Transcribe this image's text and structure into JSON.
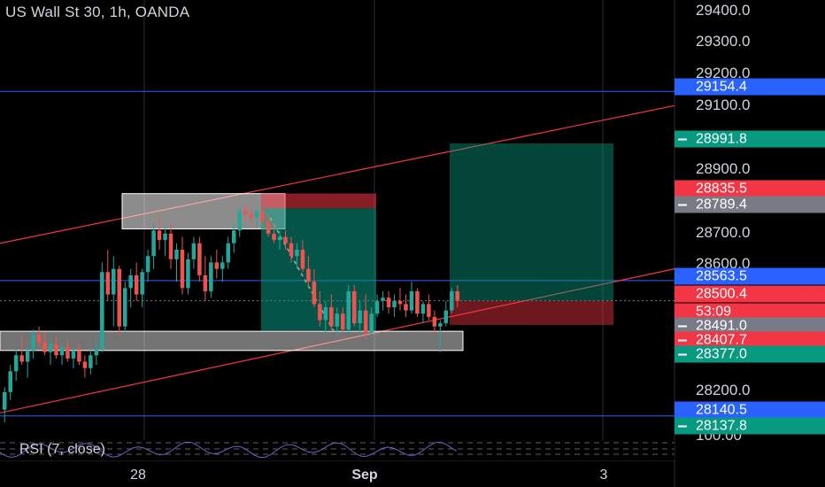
{
  "header": {
    "title": "US Wall St 30, 1h, OANDA"
  },
  "indicator": {
    "label": "RSI (7, close)"
  },
  "colors": {
    "background": "#000000",
    "up": "#26a69a",
    "down": "#ef5350",
    "blue_line": "#2962ff",
    "channel": "#f23645",
    "rsi": "#7e57c2",
    "badge_blue": "#2962ff",
    "badge_red": "#f23645",
    "badge_teal": "#089981",
    "badge_gray": "#787b86"
  },
  "x_axis": {
    "labels": [
      "28",
      "Sep",
      "3"
    ]
  },
  "y_axis": {
    "labels": [
      "29400.0",
      "29300.0",
      "29200.0",
      "29100.0",
      "28900.0",
      "28700.0",
      "28600.0",
      "28200.0",
      "100.00"
    ]
  },
  "price_badges": [
    {
      "value": "29154.4",
      "kind": "blue",
      "dash": false
    },
    {
      "value": "28991.8",
      "kind": "teal",
      "dash": true
    },
    {
      "value": "28835.5",
      "kind": "red",
      "dash": false
    },
    {
      "value": "28789.4",
      "kind": "gray",
      "dash": true
    },
    {
      "value": "28563.5",
      "kind": "blue",
      "dash": false
    },
    {
      "value": "28500.4",
      "kind": "red",
      "dash": false
    },
    {
      "value": "53:09",
      "kind": "red",
      "dash": false
    },
    {
      "value": "28491.0",
      "kind": "gray",
      "dash": true
    },
    {
      "value": "28407.7",
      "kind": "red",
      "dash": true
    },
    {
      "value": "28377.0",
      "kind": "teal",
      "dash": true
    },
    {
      "value": "28140.5",
      "kind": "blue",
      "dash": false
    },
    {
      "value": "28137.8",
      "kind": "teal",
      "dash": true
    }
  ],
  "chart_data": {
    "type": "candlestick",
    "symbol": "US Wall St 30",
    "interval": "1h",
    "source": "OANDA",
    "price_range": [
      28090,
      29440
    ],
    "horizontal_levels": [
      29154.4,
      28563.5,
      28140.5
    ],
    "channel_upper": {
      "start": 28680,
      "end": 29110
    },
    "channel_lower": {
      "start": 28150,
      "end": 28600
    },
    "last_price": 28500.4,
    "candles": [
      [
        28160,
        28230,
        28120,
        28215
      ],
      [
        28215,
        28300,
        28190,
        28280
      ],
      [
        28280,
        28350,
        28250,
        28330
      ],
      [
        28330,
        28390,
        28300,
        28310
      ],
      [
        28310,
        28360,
        28260,
        28345
      ],
      [
        28345,
        28410,
        28320,
        28395
      ],
      [
        28395,
        28420,
        28350,
        28370
      ],
      [
        28370,
        28400,
        28330,
        28340
      ],
      [
        28340,
        28380,
        28300,
        28365
      ],
      [
        28365,
        28390,
        28320,
        28330
      ],
      [
        28330,
        28370,
        28300,
        28355
      ],
      [
        28355,
        28380,
        28310,
        28320
      ],
      [
        28320,
        28360,
        28290,
        28345
      ],
      [
        28345,
        28370,
        28300,
        28310
      ],
      [
        28310,
        28330,
        28260,
        28290
      ],
      [
        28290,
        28350,
        28270,
        28330
      ],
      [
        28330,
        28380,
        28300,
        28350
      ],
      [
        28350,
        28620,
        28340,
        28590
      ],
      [
        28590,
        28660,
        28500,
        28520
      ],
      [
        28520,
        28640,
        28420,
        28600
      ],
      [
        28600,
        28610,
        28390,
        28420
      ],
      [
        28420,
        28560,
        28400,
        28540
      ],
      [
        28540,
        28600,
        28480,
        28580
      ],
      [
        28580,
        28620,
        28500,
        28520
      ],
      [
        28520,
        28600,
        28480,
        28590
      ],
      [
        28590,
        28660,
        28560,
        28640
      ],
      [
        28640,
        28740,
        28600,
        28720
      ],
      [
        28720,
        28760,
        28660,
        28690
      ],
      [
        28690,
        28730,
        28640,
        28710
      ],
      [
        28710,
        28740,
        28600,
        28630
      ],
      [
        28630,
        28680,
        28560,
        28660
      ],
      [
        28660,
        28700,
        28520,
        28540
      ],
      [
        28540,
        28650,
        28520,
        28630
      ],
      [
        28630,
        28700,
        28600,
        28680
      ],
      [
        28680,
        28700,
        28560,
        28580
      ],
      [
        28580,
        28640,
        28500,
        28530
      ],
      [
        28530,
        28640,
        28510,
        28620
      ],
      [
        28620,
        28660,
        28570,
        28600
      ],
      [
        28600,
        28640,
        28560,
        28620
      ],
      [
        28620,
        28700,
        28600,
        28680
      ],
      [
        28680,
        28740,
        28650,
        28720
      ],
      [
        28720,
        28790,
        28700,
        28780
      ],
      [
        28780,
        28800,
        28750,
        28770
      ],
      [
        28770,
        28790,
        28740,
        28760
      ],
      [
        28760,
        28790,
        28730,
        28780
      ],
      [
        28780,
        28800,
        28740,
        28750
      ],
      [
        28750,
        28770,
        28700,
        28710
      ],
      [
        28710,
        28740,
        28680,
        28690
      ],
      [
        28690,
        28720,
        28660,
        28700
      ],
      [
        28700,
        28720,
        28660,
        28680
      ],
      [
        28680,
        28700,
        28620,
        28640
      ],
      [
        28640,
        28680,
        28600,
        28660
      ],
      [
        28660,
        28690,
        28590,
        28600
      ],
      [
        28600,
        28640,
        28540,
        28560
      ],
      [
        28560,
        28600,
        28480,
        28490
      ],
      [
        28490,
        28530,
        28420,
        28440
      ],
      [
        28440,
        28500,
        28400,
        28480
      ],
      [
        28480,
        28520,
        28410,
        28420
      ],
      [
        28420,
        28480,
        28390,
        28460
      ],
      [
        28460,
        28480,
        28400,
        28410
      ],
      [
        28410,
        28550,
        28400,
        28530
      ],
      [
        28530,
        28550,
        28420,
        28430
      ],
      [
        28430,
        28500,
        28400,
        28470
      ],
      [
        28470,
        28520,
        28380,
        28400
      ],
      [
        28400,
        28480,
        28390,
        28460
      ],
      [
        28460,
        28520,
        28450,
        28500
      ],
      [
        28500,
        28530,
        28470,
        28510
      ],
      [
        28510,
        28530,
        28460,
        28480
      ],
      [
        28480,
        28520,
        28450,
        28500
      ],
      [
        28500,
        28540,
        28470,
        28490
      ],
      [
        28490,
        28520,
        28450,
        28470
      ],
      [
        28470,
        28560,
        28460,
        28530
      ],
      [
        28530,
        28540,
        28450,
        28460
      ],
      [
        28460,
        28500,
        28430,
        28490
      ],
      [
        28490,
        28520,
        28440,
        28450
      ],
      [
        28450,
        28470,
        28400,
        28420
      ],
      [
        28420,
        28440,
        28340,
        28430
      ],
      [
        28430,
        28500,
        28420,
        28470
      ],
      [
        28470,
        28540,
        28460,
        28530
      ],
      [
        28530,
        28550,
        28480,
        28500
      ]
    ]
  }
}
